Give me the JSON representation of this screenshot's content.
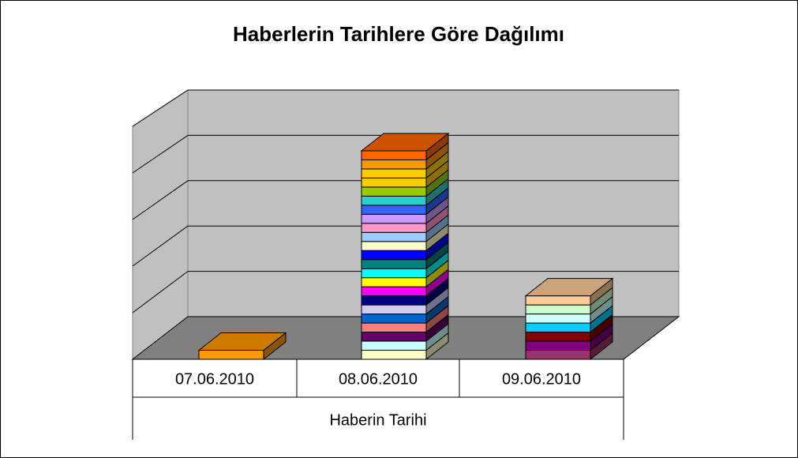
{
  "chart_data": {
    "type": "stacked-bar-3d",
    "title": "Haberlerin Tarihlere Göre Dağılımı",
    "x_label": "Haberin Tarihi",
    "categories": [
      "07.06.2010",
      "08.06.2010",
      "09.06.2010"
    ],
    "ylim": [
      0,
      25
    ],
    "yticks": [
      0,
      5,
      10,
      15,
      20,
      25
    ],
    "grid": true,
    "segments": [
      [
        {
          "value": 1,
          "color": "#ff9900"
        }
      ],
      [
        {
          "value": 1,
          "color": "#ffffcc"
        },
        {
          "value": 1,
          "color": "#ccffff"
        },
        {
          "value": 1,
          "color": "#660066"
        },
        {
          "value": 1,
          "color": "#ff8080"
        },
        {
          "value": 1,
          "color": "#0066cc"
        },
        {
          "value": 1,
          "color": "#ccccff"
        },
        {
          "value": 1,
          "color": "#000080"
        },
        {
          "value": 1,
          "color": "#ff00ff"
        },
        {
          "value": 1,
          "color": "#ffff00"
        },
        {
          "value": 1,
          "color": "#00ffff"
        },
        {
          "value": 1,
          "color": "#008080"
        },
        {
          "value": 1,
          "color": "#0000ff"
        },
        {
          "value": 1,
          "color": "#ffffcc"
        },
        {
          "value": 1,
          "color": "#99ccff"
        },
        {
          "value": 1,
          "color": "#ff99cc"
        },
        {
          "value": 1,
          "color": "#cc99ff"
        },
        {
          "value": 1,
          "color": "#3366ff"
        },
        {
          "value": 1,
          "color": "#33cccc"
        },
        {
          "value": 1,
          "color": "#99cc00"
        },
        {
          "value": 1,
          "color": "#ffcc00"
        },
        {
          "value": 1,
          "color": "#ffcc00"
        },
        {
          "value": 1,
          "color": "#ff9900"
        },
        {
          "value": 1,
          "color": "#ff6600"
        }
      ],
      [
        {
          "value": 1,
          "color": "#993366"
        },
        {
          "value": 1,
          "color": "#800080"
        },
        {
          "value": 1,
          "color": "#800000"
        },
        {
          "value": 1,
          "color": "#00ccff"
        },
        {
          "value": 1,
          "color": "#ccffff"
        },
        {
          "value": 1,
          "color": "#ccffcc"
        },
        {
          "value": 1,
          "color": "#ffcc99"
        }
      ]
    ]
  }
}
